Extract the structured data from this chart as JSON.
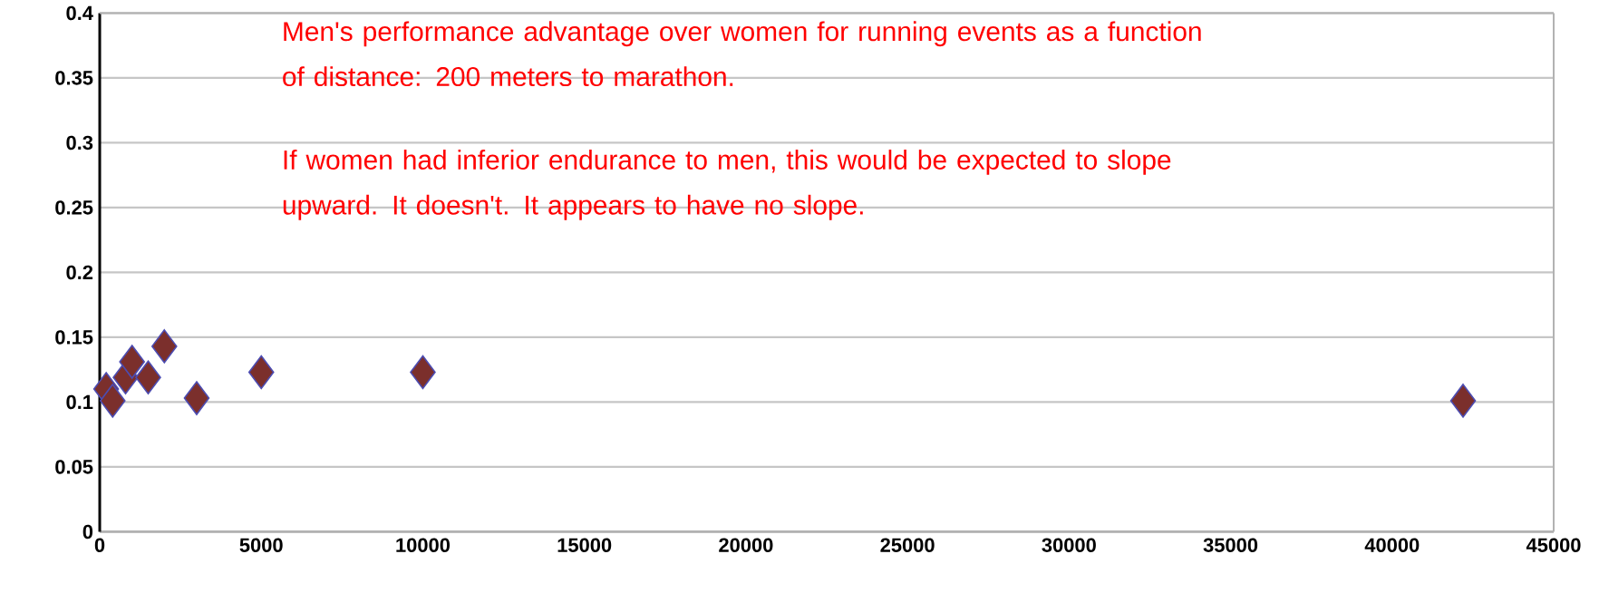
{
  "chart_data": {
    "type": "scatter",
    "annotations": [
      "Men's performance advantage over women for running events as a function of distance:  200 meters to marathon.",
      "If women had inferior endurance to men, this would be expected to slope upward.   It doesn't.  It appears to have no slope."
    ],
    "x": [
      200,
      400,
      800,
      1000,
      1500,
      2000,
      3000,
      5000,
      10000,
      42195
    ],
    "values": [
      0.11,
      0.101,
      0.119,
      0.131,
      0.119,
      0.143,
      0.103,
      0.123,
      0.123,
      0.101
    ],
    "color": "#7b2f2c",
    "marker": "diamond",
    "xlim": [
      0,
      45000
    ],
    "ylim": [
      0,
      0.4
    ],
    "xticks": [
      0,
      5000,
      10000,
      15000,
      20000,
      25000,
      30000,
      35000,
      40000,
      45000
    ],
    "yticks": [
      0,
      0.05,
      0.1,
      0.15,
      0.2,
      0.25,
      0.3,
      0.35,
      0.4
    ],
    "grid": "y"
  }
}
